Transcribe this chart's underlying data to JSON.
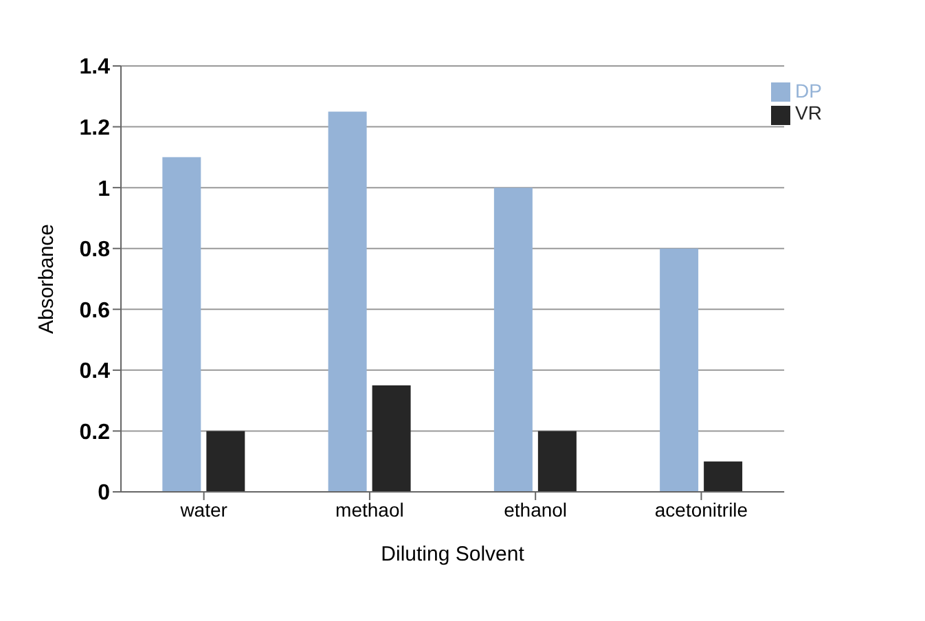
{
  "chart_data": {
    "type": "bar",
    "xlabel": "Diluting Solvent",
    "ylabel": "Absorbance",
    "categories": [
      "water",
      "methaol",
      "ethanol",
      "acetonitrile"
    ],
    "series": [
      {
        "name": "DP",
        "color": "#95b3d7",
        "values": [
          1.1,
          1.25,
          1.0,
          0.8
        ]
      },
      {
        "name": "VR",
        "color": "#262626",
        "values": [
          0.2,
          0.35,
          0.2,
          0.1
        ]
      }
    ],
    "ylim": [
      0,
      1.4
    ],
    "yticks": [
      0,
      0.2,
      0.4,
      0.6,
      0.8,
      1,
      1.2,
      1.4
    ],
    "grid": "y",
    "legend": "top right"
  }
}
